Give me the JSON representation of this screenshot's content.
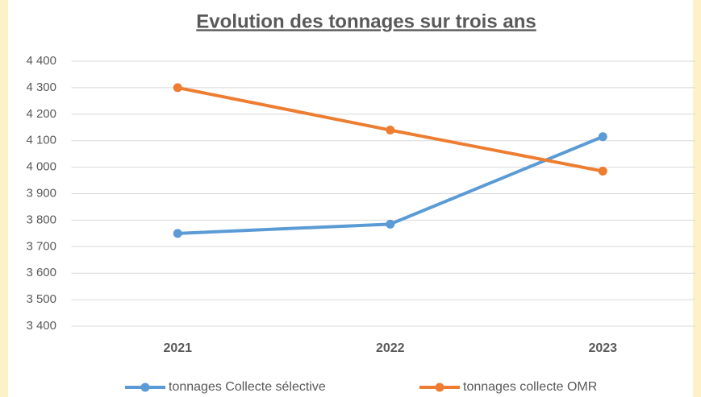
{
  "chart_data": {
    "type": "line",
    "title": "Evolution des tonnages sur trois ans",
    "categories": [
      "2021",
      "2022",
      "2023"
    ],
    "series": [
      {
        "name": "tonnages Collecte sélective",
        "color": "#5b9bd5",
        "values": [
          3750,
          3785,
          4115
        ]
      },
      {
        "name": "tonnages collecte OMR",
        "color": "#ed7d31",
        "values": [
          4300,
          4140,
          3985
        ]
      }
    ],
    "ylim": [
      3400,
      4400
    ],
    "yticks": [
      {
        "value": 3400,
        "label": "3 400"
      },
      {
        "value": 3500,
        "label": "3 500"
      },
      {
        "value": 3600,
        "label": "3 600"
      },
      {
        "value": 3700,
        "label": "3 700"
      },
      {
        "value": 3800,
        "label": "3 800"
      },
      {
        "value": 3900,
        "label": "3 900"
      },
      {
        "value": 4000,
        "label": "4 000"
      },
      {
        "value": 4100,
        "label": "4 100"
      },
      {
        "value": 4200,
        "label": "4 200"
      },
      {
        "value": 4300,
        "label": "4 300"
      },
      {
        "value": 4400,
        "label": "4 400"
      }
    ],
    "grid": true,
    "legend": "bottom"
  }
}
